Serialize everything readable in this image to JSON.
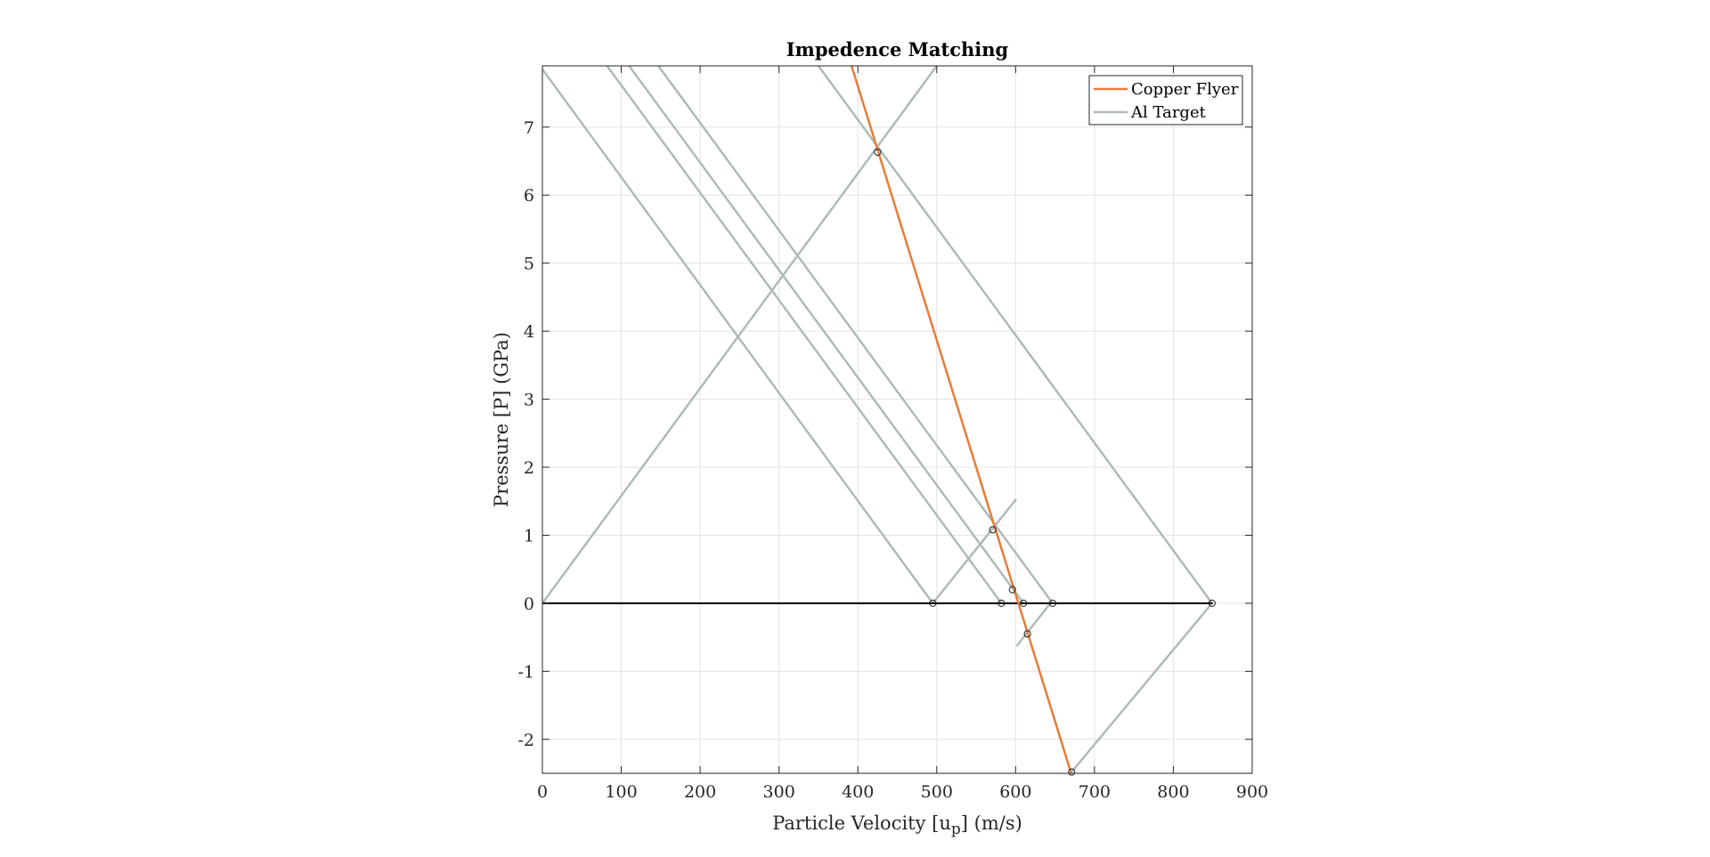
{
  "chart_data": {
    "type": "line",
    "title": "Impedence Matching",
    "xlabel": {
      "main": "Particle Velocity [u",
      "sub": "p",
      "tail": "] (m/s)"
    },
    "ylabel": "Pressure [P] (GPa)",
    "xlim": [
      0,
      900
    ],
    "ylim": [
      -2.5,
      7.9
    ],
    "xticks": [
      0,
      100,
      200,
      300,
      400,
      500,
      600,
      700,
      800,
      900
    ],
    "yticks": [
      -2,
      -1,
      0,
      1,
      2,
      3,
      4,
      5,
      6,
      7
    ],
    "grid": true,
    "legend_position": "top-right",
    "colors": {
      "copper": "#E87B3A",
      "al": "#AEBCB4",
      "zero_line": "#000000",
      "axis": "#262626",
      "grid": "#E3E3E3"
    },
    "series": [
      {
        "name": "Copper Flyer",
        "color": "#E87B3A",
        "x": [
          392,
          670
        ],
        "y": [
          7.9,
          -2.48
        ]
      },
      {
        "name": "Al Target",
        "color": "#AEBCB4",
        "x": [
          0,
          500
        ],
        "y": [
          0,
          7.9
        ]
      }
    ],
    "al_lines": [
      {
        "x": [
          0,
          495
        ],
        "y": [
          7.85,
          0
        ]
      },
      {
        "x": [
          82,
          582
        ],
        "y": [
          7.9,
          0
        ]
      },
      {
        "x": [
          110,
          610
        ],
        "y": [
          7.9,
          0
        ]
      },
      {
        "x": [
          147,
          647
        ],
        "y": [
          7.9,
          0
        ]
      },
      {
        "x": [
          350,
          849
        ],
        "y": [
          7.9,
          0
        ]
      },
      {
        "x": [
          495,
          600
        ],
        "y": [
          0,
          1.52
        ]
      },
      {
        "x": [
          602,
          644
        ],
        "y": [
          -0.62,
          0
        ]
      },
      {
        "x": [
          671,
          849
        ],
        "y": [
          -2.48,
          0
        ]
      }
    ],
    "zero_line": {
      "x": [
        0,
        849
      ],
      "y": [
        0,
        0
      ]
    },
    "points": [
      {
        "x": 425,
        "y": 6.63
      },
      {
        "x": 571,
        "y": 1.08
      },
      {
        "x": 596,
        "y": 0.2
      },
      {
        "x": 495,
        "y": 0
      },
      {
        "x": 582,
        "y": 0
      },
      {
        "x": 610,
        "y": 0
      },
      {
        "x": 647,
        "y": 0
      },
      {
        "x": 849,
        "y": 0
      },
      {
        "x": 615,
        "y": -0.45
      },
      {
        "x": 671,
        "y": -2.48
      }
    ]
  }
}
